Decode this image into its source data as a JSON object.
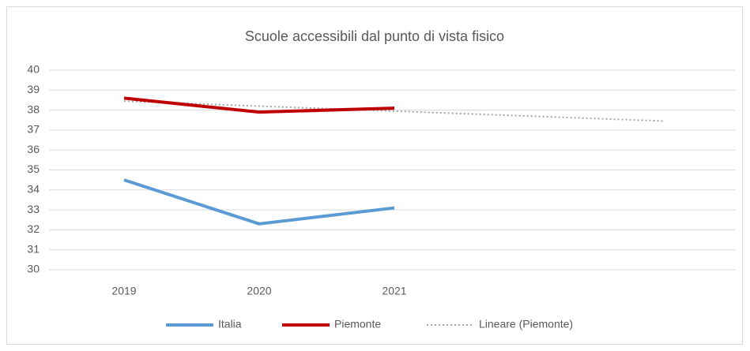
{
  "chart_data": {
    "type": "line",
    "title": "Scuole accessibili dal punto di vista fisico",
    "categories": [
      "2019",
      "2020",
      "2021",
      null,
      null
    ],
    "series": [
      {
        "name": "Italia",
        "color": "#5b9bd5",
        "line_style": "solid",
        "values": [
          34.5,
          32.3,
          33.1,
          null,
          null
        ]
      },
      {
        "name": "Piemonte",
        "color": "#c00000",
        "line_style": "solid",
        "values": [
          38.6,
          37.9,
          38.1,
          null,
          null
        ]
      },
      {
        "name": "Lineare (Piemonte)",
        "color": "#a5a5a5",
        "line_style": "dotted",
        "values": [
          38.45,
          38.2,
          37.95,
          37.7,
          37.45
        ]
      }
    ],
    "ylim": [
      30,
      40
    ],
    "yticks": [
      30,
      31,
      32,
      33,
      34,
      35,
      36,
      37,
      38,
      39,
      40
    ],
    "grid": true,
    "legend": "bottom"
  }
}
